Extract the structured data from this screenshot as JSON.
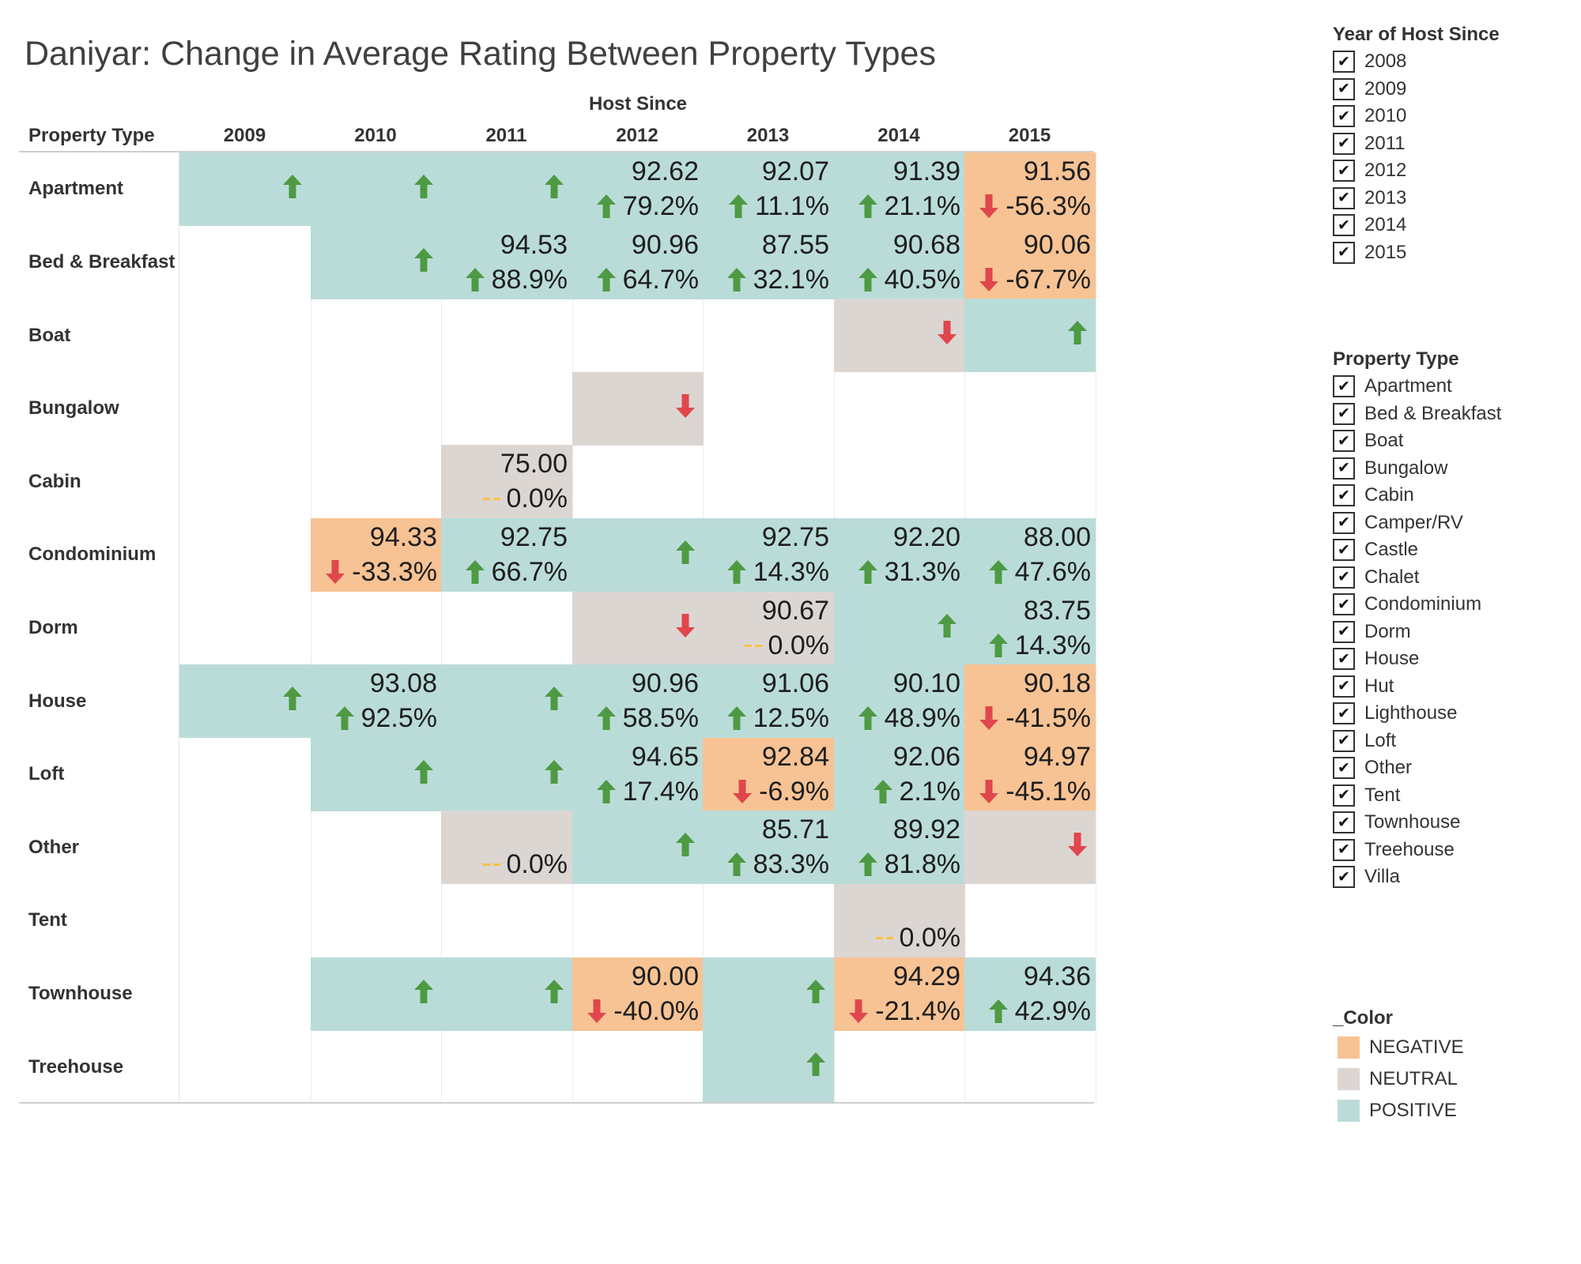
{
  "title": "Daniyar: Change in Average Rating Between Property Types",
  "colors": {
    "NEGATIVE": "#f7c394",
    "NEUTRAL": "#dcd6d3",
    "POSITIVE": "#badcd9",
    "up_arrow": "#4e9a43",
    "down_arrow": "#e0474c",
    "neutral_dash": "#f5c242"
  },
  "chart_data": {
    "type": "table",
    "column_header": "Host Since",
    "row_header": "Property Type",
    "columns": [
      "2009",
      "2010",
      "2011",
      "2012",
      "2013",
      "2014",
      "2015"
    ],
    "rows": [
      "Apartment",
      "Bed & Breakfast",
      "Boat",
      "Bungalow",
      "Cabin",
      "Condominium",
      "Dorm",
      "House",
      "Loft",
      "Other",
      "Tent",
      "Townhouse",
      "Treehouse"
    ],
    "cells": [
      {
        "row": "Apartment",
        "col": "2009",
        "color": "POSITIVE",
        "dir": "up",
        "value": "",
        "pct": ""
      },
      {
        "row": "Apartment",
        "col": "2010",
        "color": "POSITIVE",
        "dir": "up",
        "value": "",
        "pct": ""
      },
      {
        "row": "Apartment",
        "col": "2011",
        "color": "POSITIVE",
        "dir": "up",
        "value": "",
        "pct": ""
      },
      {
        "row": "Apartment",
        "col": "2012",
        "color": "POSITIVE",
        "dir": "up",
        "value": "92.62",
        "pct": "79.2%"
      },
      {
        "row": "Apartment",
        "col": "2013",
        "color": "POSITIVE",
        "dir": "up",
        "value": "92.07",
        "pct": "11.1%"
      },
      {
        "row": "Apartment",
        "col": "2014",
        "color": "POSITIVE",
        "dir": "up",
        "value": "91.39",
        "pct": "21.1%"
      },
      {
        "row": "Apartment",
        "col": "2015",
        "color": "NEGATIVE",
        "dir": "down",
        "value": "91.56",
        "pct": "-56.3%"
      },
      {
        "row": "Bed & Breakfast",
        "col": "2010",
        "color": "POSITIVE",
        "dir": "up",
        "value": "",
        "pct": ""
      },
      {
        "row": "Bed & Breakfast",
        "col": "2011",
        "color": "POSITIVE",
        "dir": "up",
        "value": "94.53",
        "pct": "88.9%"
      },
      {
        "row": "Bed & Breakfast",
        "col": "2012",
        "color": "POSITIVE",
        "dir": "up",
        "value": "90.96",
        "pct": "64.7%"
      },
      {
        "row": "Bed & Breakfast",
        "col": "2013",
        "color": "POSITIVE",
        "dir": "up",
        "value": "87.55",
        "pct": "32.1%"
      },
      {
        "row": "Bed & Breakfast",
        "col": "2014",
        "color": "POSITIVE",
        "dir": "up",
        "value": "90.68",
        "pct": "40.5%"
      },
      {
        "row": "Bed & Breakfast",
        "col": "2015",
        "color": "NEGATIVE",
        "dir": "down",
        "value": "90.06",
        "pct": "-67.7%"
      },
      {
        "row": "Boat",
        "col": "2014",
        "color": "NEUTRAL",
        "dir": "down",
        "value": "",
        "pct": ""
      },
      {
        "row": "Boat",
        "col": "2015",
        "color": "POSITIVE",
        "dir": "up",
        "value": "",
        "pct": ""
      },
      {
        "row": "Bungalow",
        "col": "2012",
        "color": "NEUTRAL",
        "dir": "down",
        "value": "",
        "pct": ""
      },
      {
        "row": "Cabin",
        "col": "2011",
        "color": "NEUTRAL",
        "dir": "flat",
        "value": "75.00",
        "pct": "0.0%"
      },
      {
        "row": "Condominium",
        "col": "2010",
        "color": "NEGATIVE",
        "dir": "down",
        "value": "94.33",
        "pct": "-33.3%"
      },
      {
        "row": "Condominium",
        "col": "2011",
        "color": "POSITIVE",
        "dir": "up",
        "value": "92.75",
        "pct": "66.7%"
      },
      {
        "row": "Condominium",
        "col": "2012",
        "color": "POSITIVE",
        "dir": "up",
        "value": "",
        "pct": ""
      },
      {
        "row": "Condominium",
        "col": "2013",
        "color": "POSITIVE",
        "dir": "up",
        "value": "92.75",
        "pct": "14.3%"
      },
      {
        "row": "Condominium",
        "col": "2014",
        "color": "POSITIVE",
        "dir": "up",
        "value": "92.20",
        "pct": "31.3%"
      },
      {
        "row": "Condominium",
        "col": "2015",
        "color": "POSITIVE",
        "dir": "up",
        "value": "88.00",
        "pct": "47.6%"
      },
      {
        "row": "Dorm",
        "col": "2012",
        "color": "NEUTRAL",
        "dir": "down",
        "value": "",
        "pct": ""
      },
      {
        "row": "Dorm",
        "col": "2013",
        "color": "NEUTRAL",
        "dir": "flat",
        "value": "90.67",
        "pct": "0.0%"
      },
      {
        "row": "Dorm",
        "col": "2014",
        "color": "POSITIVE",
        "dir": "up",
        "value": "",
        "pct": ""
      },
      {
        "row": "Dorm",
        "col": "2015",
        "color": "POSITIVE",
        "dir": "up",
        "value": "83.75",
        "pct": "14.3%"
      },
      {
        "row": "House",
        "col": "2009",
        "color": "POSITIVE",
        "dir": "up",
        "value": "",
        "pct": ""
      },
      {
        "row": "House",
        "col": "2010",
        "color": "POSITIVE",
        "dir": "up",
        "value": "93.08",
        "pct": "92.5%"
      },
      {
        "row": "House",
        "col": "2011",
        "color": "POSITIVE",
        "dir": "up",
        "value": "",
        "pct": ""
      },
      {
        "row": "House",
        "col": "2012",
        "color": "POSITIVE",
        "dir": "up",
        "value": "90.96",
        "pct": "58.5%"
      },
      {
        "row": "House",
        "col": "2013",
        "color": "POSITIVE",
        "dir": "up",
        "value": "91.06",
        "pct": "12.5%"
      },
      {
        "row": "House",
        "col": "2014",
        "color": "POSITIVE",
        "dir": "up",
        "value": "90.10",
        "pct": "48.9%"
      },
      {
        "row": "House",
        "col": "2015",
        "color": "NEGATIVE",
        "dir": "down",
        "value": "90.18",
        "pct": "-41.5%"
      },
      {
        "row": "Loft",
        "col": "2010",
        "color": "POSITIVE",
        "dir": "up",
        "value": "",
        "pct": ""
      },
      {
        "row": "Loft",
        "col": "2011",
        "color": "POSITIVE",
        "dir": "up",
        "value": "",
        "pct": ""
      },
      {
        "row": "Loft",
        "col": "2012",
        "color": "POSITIVE",
        "dir": "up",
        "value": "94.65",
        "pct": "17.4%"
      },
      {
        "row": "Loft",
        "col": "2013",
        "color": "NEGATIVE",
        "dir": "down",
        "value": "92.84",
        "pct": "-6.9%"
      },
      {
        "row": "Loft",
        "col": "2014",
        "color": "POSITIVE",
        "dir": "up",
        "value": "92.06",
        "pct": "2.1%"
      },
      {
        "row": "Loft",
        "col": "2015",
        "color": "NEGATIVE",
        "dir": "down",
        "value": "94.97",
        "pct": "-45.1%"
      },
      {
        "row": "Other",
        "col": "2011",
        "color": "NEUTRAL",
        "dir": "flat",
        "value": "",
        "pct": "0.0%"
      },
      {
        "row": "Other",
        "col": "2012",
        "color": "POSITIVE",
        "dir": "up",
        "value": "",
        "pct": ""
      },
      {
        "row": "Other",
        "col": "2013",
        "color": "POSITIVE",
        "dir": "up",
        "value": "85.71",
        "pct": "83.3%"
      },
      {
        "row": "Other",
        "col": "2014",
        "color": "POSITIVE",
        "dir": "up",
        "value": "89.92",
        "pct": "81.8%"
      },
      {
        "row": "Other",
        "col": "2015",
        "color": "NEUTRAL",
        "dir": "down",
        "value": "",
        "pct": ""
      },
      {
        "row": "Tent",
        "col": "2014",
        "color": "NEUTRAL",
        "dir": "flat",
        "value": "",
        "pct": "0.0%"
      },
      {
        "row": "Townhouse",
        "col": "2010",
        "color": "POSITIVE",
        "dir": "up",
        "value": "",
        "pct": ""
      },
      {
        "row": "Townhouse",
        "col": "2011",
        "color": "POSITIVE",
        "dir": "up",
        "value": "",
        "pct": ""
      },
      {
        "row": "Townhouse",
        "col": "2012",
        "color": "NEGATIVE",
        "dir": "down",
        "value": "90.00",
        "pct": "-40.0%"
      },
      {
        "row": "Townhouse",
        "col": "2013",
        "color": "POSITIVE",
        "dir": "up",
        "value": "",
        "pct": ""
      },
      {
        "row": "Townhouse",
        "col": "2014",
        "color": "NEGATIVE",
        "dir": "down",
        "value": "94.29",
        "pct": "-21.4%"
      },
      {
        "row": "Townhouse",
        "col": "2015",
        "color": "POSITIVE",
        "dir": "up",
        "value": "94.36",
        "pct": "42.9%"
      },
      {
        "row": "Treehouse",
        "col": "2013",
        "color": "POSITIVE",
        "dir": "up",
        "value": "",
        "pct": ""
      }
    ]
  },
  "filters": {
    "year": {
      "title": "Year of Host Since",
      "items": [
        "2008",
        "2009",
        "2010",
        "2011",
        "2012",
        "2013",
        "2014",
        "2015"
      ],
      "checked": true
    },
    "property_type": {
      "title": "Property Type",
      "items": [
        "Apartment",
        "Bed & Breakfast",
        "Boat",
        "Bungalow",
        "Cabin",
        "Camper/RV",
        "Castle",
        "Chalet",
        "Condominium",
        "Dorm",
        "House",
        "Hut",
        "Lighthouse",
        "Loft",
        "Other",
        "Tent",
        "Townhouse",
        "Treehouse",
        "Villa"
      ],
      "checked": true
    },
    "check_glyph": "✔"
  },
  "color_legend": {
    "title": "_Color",
    "items": [
      "NEGATIVE",
      "NEUTRAL",
      "POSITIVE"
    ]
  }
}
